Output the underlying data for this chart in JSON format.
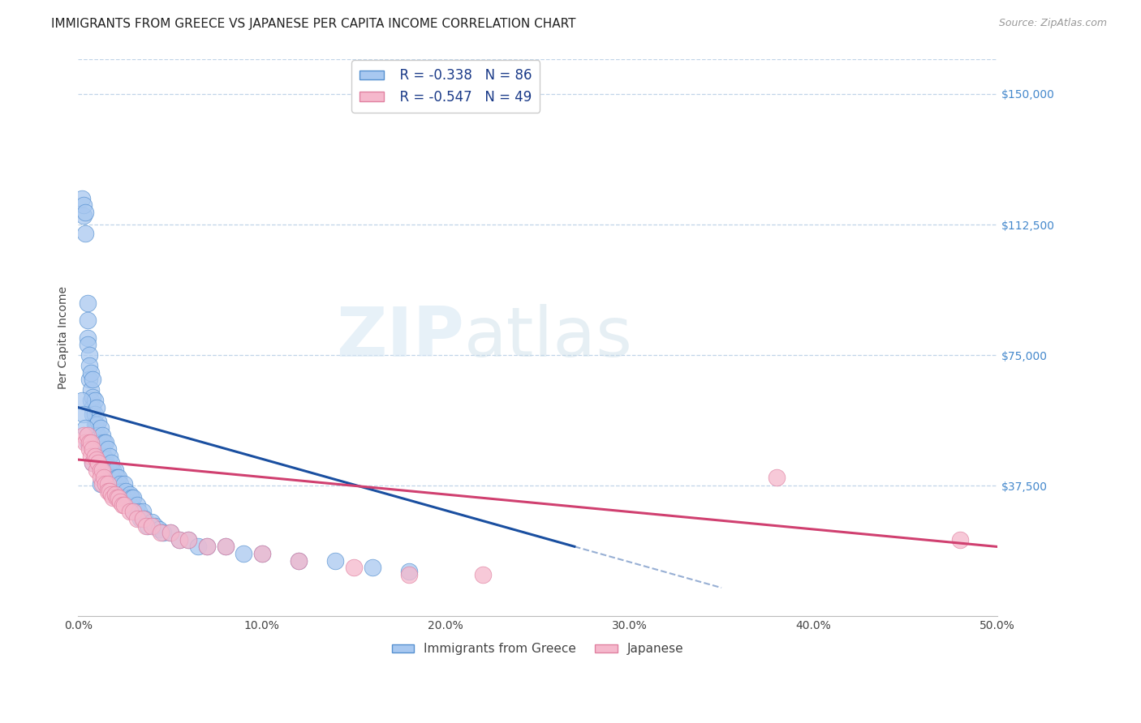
{
  "title": "IMMIGRANTS FROM GREECE VS JAPANESE PER CAPITA INCOME CORRELATION CHART",
  "source": "Source: ZipAtlas.com",
  "ylabel": "Per Capita Income",
  "ytick_labels": [
    "$150,000",
    "$112,500",
    "$75,000",
    "$37,500"
  ],
  "ytick_values": [
    150000,
    112500,
    75000,
    37500
  ],
  "ymin": 0,
  "ymax": 160000,
  "xmin": 0.0,
  "xmax": 0.5,
  "watermark_zip": "ZIP",
  "watermark_atlas": "atlas",
  "legend_blue_r": "R = -0.338",
  "legend_blue_n": "N = 86",
  "legend_pink_r": "R = -0.547",
  "legend_pink_n": "N = 49",
  "legend_label_blue": "Immigrants from Greece",
  "legend_label_pink": "Japanese",
  "blue_color": "#a8c8f0",
  "blue_edge_color": "#5590d0",
  "blue_line_color": "#1a4fa0",
  "pink_color": "#f5b8cc",
  "pink_edge_color": "#e080a0",
  "pink_line_color": "#d04070",
  "blue_scatter_x": [
    0.002,
    0.003,
    0.003,
    0.004,
    0.004,
    0.005,
    0.005,
    0.005,
    0.005,
    0.006,
    0.006,
    0.006,
    0.007,
    0.007,
    0.007,
    0.008,
    0.008,
    0.008,
    0.008,
    0.009,
    0.009,
    0.009,
    0.01,
    0.01,
    0.01,
    0.011,
    0.011,
    0.012,
    0.012,
    0.013,
    0.013,
    0.014,
    0.014,
    0.015,
    0.015,
    0.016,
    0.016,
    0.017,
    0.018,
    0.018,
    0.019,
    0.019,
    0.02,
    0.02,
    0.021,
    0.022,
    0.022,
    0.023,
    0.024,
    0.025,
    0.025,
    0.026,
    0.027,
    0.028,
    0.028,
    0.029,
    0.03,
    0.03,
    0.032,
    0.033,
    0.034,
    0.035,
    0.036,
    0.038,
    0.04,
    0.042,
    0.044,
    0.046,
    0.05,
    0.055,
    0.06,
    0.065,
    0.07,
    0.08,
    0.09,
    0.1,
    0.12,
    0.14,
    0.16,
    0.18,
    0.002,
    0.003,
    0.004,
    0.005,
    0.008,
    0.012
  ],
  "blue_scatter_y": [
    120000,
    115000,
    118000,
    110000,
    116000,
    90000,
    85000,
    80000,
    78000,
    75000,
    72000,
    68000,
    70000,
    65000,
    62000,
    68000,
    63000,
    60000,
    58000,
    62000,
    58000,
    55000,
    60000,
    55000,
    52000,
    56000,
    52000,
    54000,
    50000,
    52000,
    48000,
    50000,
    46000,
    50000,
    45000,
    48000,
    43000,
    46000,
    44000,
    42000,
    42000,
    40000,
    42000,
    38000,
    40000,
    40000,
    36000,
    38000,
    36000,
    38000,
    34000,
    36000,
    34000,
    35000,
    32000,
    34000,
    34000,
    30000,
    32000,
    30000,
    28000,
    30000,
    28000,
    26000,
    27000,
    26000,
    25000,
    24000,
    24000,
    22000,
    22000,
    20000,
    20000,
    20000,
    18000,
    18000,
    16000,
    16000,
    14000,
    13000,
    62000,
    58000,
    54000,
    50000,
    44000,
    38000
  ],
  "pink_scatter_x": [
    0.003,
    0.004,
    0.005,
    0.006,
    0.006,
    0.007,
    0.007,
    0.008,
    0.008,
    0.009,
    0.01,
    0.01,
    0.011,
    0.012,
    0.012,
    0.013,
    0.013,
    0.014,
    0.015,
    0.016,
    0.016,
    0.017,
    0.018,
    0.019,
    0.02,
    0.021,
    0.022,
    0.023,
    0.024,
    0.025,
    0.028,
    0.03,
    0.032,
    0.035,
    0.037,
    0.04,
    0.045,
    0.05,
    0.055,
    0.06,
    0.07,
    0.08,
    0.1,
    0.12,
    0.15,
    0.18,
    0.22,
    0.38,
    0.48
  ],
  "pink_scatter_y": [
    52000,
    50000,
    52000,
    50000,
    48000,
    50000,
    46000,
    48000,
    44000,
    46000,
    45000,
    42000,
    44000,
    42000,
    40000,
    42000,
    38000,
    40000,
    38000,
    38000,
    36000,
    36000,
    35000,
    34000,
    35000,
    34000,
    34000,
    33000,
    32000,
    32000,
    30000,
    30000,
    28000,
    28000,
    26000,
    26000,
    24000,
    24000,
    22000,
    22000,
    20000,
    20000,
    18000,
    16000,
    14000,
    12000,
    12000,
    40000,
    22000
  ],
  "background_color": "#ffffff",
  "grid_color": "#c0d4e8",
  "title_fontsize": 11,
  "axis_label_fontsize": 10,
  "tick_fontsize": 10,
  "blue_trendline_x_end": 0.27,
  "blue_trendline_dash_end": 0.35,
  "xtick_positions": [
    0.0,
    0.1,
    0.2,
    0.3,
    0.4,
    0.5
  ],
  "xtick_labels": [
    "0.0%",
    "10.0%",
    "20.0%",
    "30.0%",
    "40.0%",
    "50.0%"
  ]
}
